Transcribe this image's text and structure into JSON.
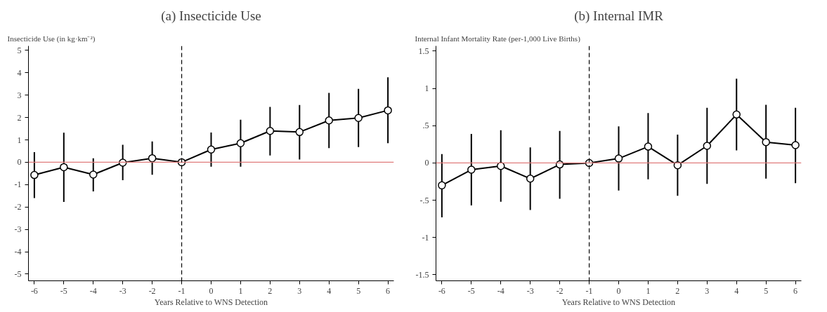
{
  "chart_data": [
    {
      "type": "line",
      "title": "(a) Insecticide Use",
      "ylabel": "Insecticide Use (in kg·km⁻²)",
      "xlabel": "Years Relative to WNS Detection",
      "x": [
        -6,
        -5,
        -4,
        -3,
        -2,
        -1,
        0,
        1,
        2,
        3,
        4,
        5,
        6
      ],
      "series": [
        {
          "color": "#000000",
          "values": [
            -0.57,
            -0.22,
            -0.55,
            -0.02,
            0.18,
            0,
            0.57,
            0.85,
            1.4,
            1.35,
            1.87,
            1.98,
            2.32
          ],
          "errors": [
            [
              -1.6,
              0.45
            ],
            [
              -1.77,
              1.32
            ],
            [
              -1.3,
              0.18
            ],
            [
              -0.8,
              0.78
            ],
            [
              -0.56,
              0.93
            ],
            null,
            [
              -0.2,
              1.33
            ],
            [
              -0.2,
              1.9
            ],
            [
              0.3,
              2.47
            ],
            [
              0.12,
              2.56
            ],
            [
              0.63,
              3.1
            ],
            [
              0.68,
              3.28
            ],
            [
              0.85,
              3.8
            ]
          ]
        }
      ],
      "xlim": [
        -6.2,
        6.2
      ],
      "xticks": [
        -6,
        -5,
        -4,
        -3,
        -2,
        -1,
        0,
        1,
        2,
        3,
        4,
        5,
        6
      ],
      "ylim": [
        -5.3,
        5.2
      ],
      "yticks": [
        -5,
        -4,
        -3,
        -2,
        -1,
        0,
        1,
        2,
        3,
        4,
        5
      ],
      "ref_lines": [
        {
          "axis": "y",
          "value": 0,
          "color": "#e07b7b",
          "line_style": "solid"
        },
        {
          "axis": "x",
          "value": -1,
          "color": "#000000",
          "line_style": "dashed"
        }
      ],
      "marker": "circle",
      "line_style": "solid",
      "grid": false
    },
    {
      "type": "line",
      "title": "(b) Internal IMR",
      "ylabel": "Internal Infant Mortality Rate (per-1,000 Live Births)",
      "xlabel": "Years Relative to WNS Detection",
      "x": [
        -6,
        -5,
        -4,
        -3,
        -2,
        -1,
        0,
        1,
        2,
        3,
        4,
        5,
        6
      ],
      "series": [
        {
          "color": "#000000",
          "values": [
            -0.3,
            -0.09,
            -0.04,
            -0.21,
            -0.02,
            0,
            0.06,
            0.22,
            -0.03,
            0.23,
            0.65,
            0.28,
            0.24
          ],
          "errors": [
            [
              -0.73,
              0.12
            ],
            [
              -0.57,
              0.39
            ],
            [
              -0.52,
              0.44
            ],
            [
              -0.63,
              0.21
            ],
            [
              -0.48,
              0.43
            ],
            null,
            [
              -0.37,
              0.49
            ],
            [
              -0.22,
              0.67
            ],
            [
              -0.44,
              0.38
            ],
            [
              -0.28,
              0.74
            ],
            [
              0.17,
              1.13
            ],
            [
              -0.21,
              0.78
            ],
            [
              -0.27,
              0.74
            ]
          ]
        }
      ],
      "xlim": [
        -6.2,
        6.2
      ],
      "xticks": [
        -6,
        -5,
        -4,
        -3,
        -2,
        -1,
        0,
        1,
        2,
        3,
        4,
        5,
        6
      ],
      "ylim": [
        -1.58,
        1.57
      ],
      "yticks": [
        {
          "value": -1.5,
          "label": "-1.5"
        },
        -1,
        {
          "value": -0.5,
          "label": "-.5"
        },
        0,
        {
          "value": 0.5,
          "label": ".5"
        },
        1,
        1.5
      ],
      "ref_lines": [
        {
          "axis": "y",
          "value": 0,
          "color": "#e07b7b",
          "line_style": "solid"
        },
        {
          "axis": "x",
          "value": -1,
          "color": "#000000",
          "line_style": "dashed"
        }
      ],
      "marker": "circle",
      "line_style": "solid",
      "grid": false
    }
  ]
}
